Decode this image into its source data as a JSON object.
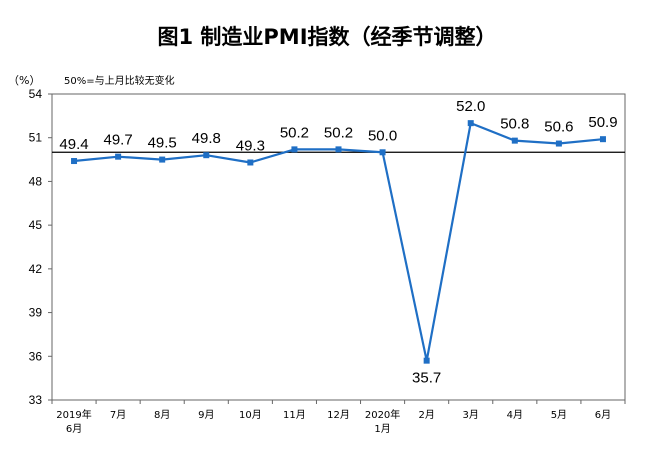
{
  "chart_data": {
    "type": "line",
    "title": "图1 制造业PMI指数（经季节调整）",
    "unit_label": "（%）",
    "reference_note": "50%=与上月比较无变化",
    "reference_value": 50,
    "ylim": [
      33,
      54
    ],
    "yticks": [
      33,
      36,
      39,
      42,
      45,
      48,
      51,
      54
    ],
    "categories": [
      [
        "2019年",
        "6月"
      ],
      [
        "7月"
      ],
      [
        "8月"
      ],
      [
        "9月"
      ],
      [
        "10月"
      ],
      [
        "11月"
      ],
      [
        "12月"
      ],
      [
        "2020年",
        "1月"
      ],
      [
        "2月"
      ],
      [
        "3月"
      ],
      [
        "4月"
      ],
      [
        "5月"
      ],
      [
        "6月"
      ]
    ],
    "series": [
      {
        "values": [
          49.4,
          49.7,
          49.5,
          49.8,
          49.3,
          50.2,
          50.2,
          50.0,
          35.7,
          52.0,
          50.8,
          50.6,
          50.9
        ],
        "color": "#1f6fc5"
      }
    ],
    "data_labels": [
      "49.4",
      "49.7",
      "49.5",
      "49.8",
      "49.3",
      "50.2",
      "50.2",
      "50.0",
      "35.7",
      "52.0",
      "50.8",
      "50.6",
      "50.9"
    ],
    "grid": false,
    "legend": "none"
  }
}
